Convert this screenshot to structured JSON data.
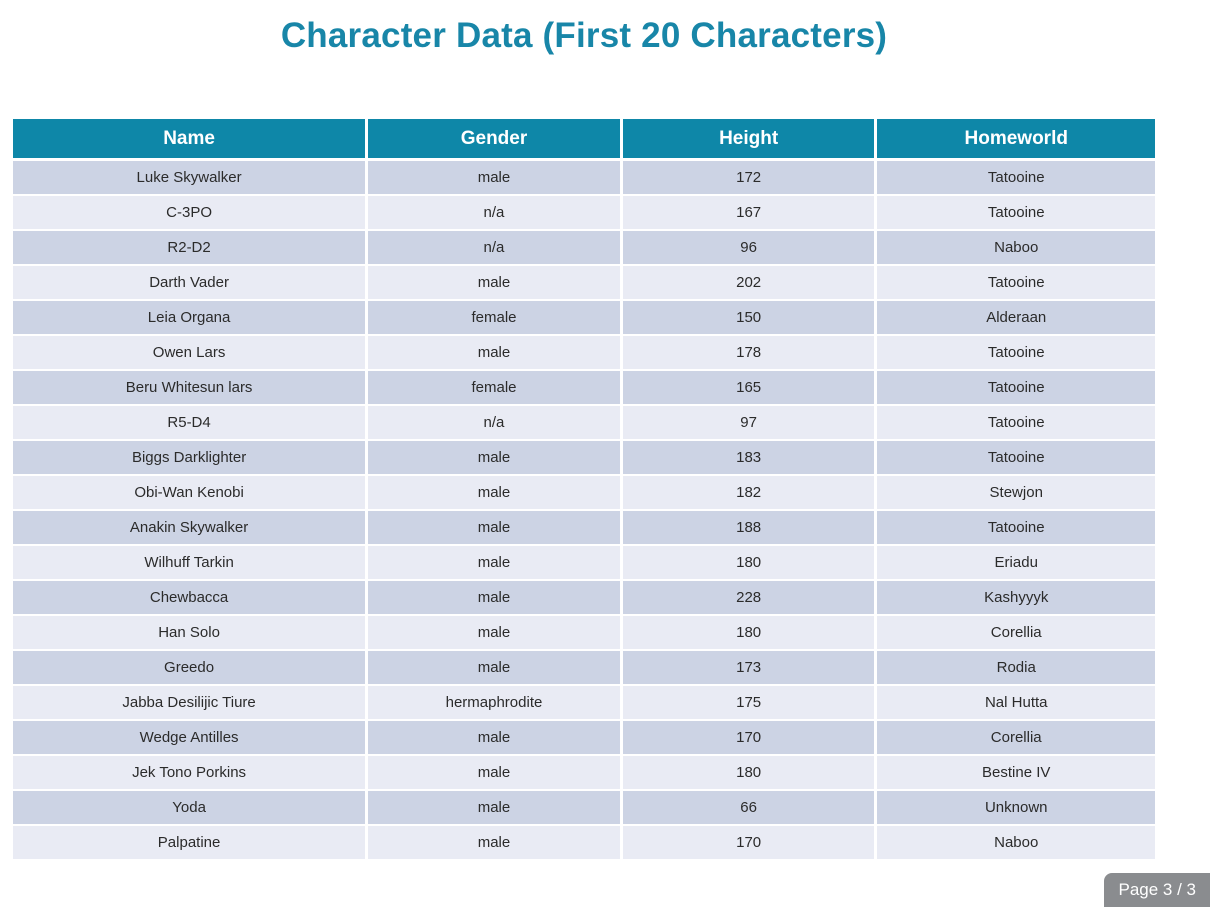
{
  "page": {
    "title": "Character Data (First 20 Characters)",
    "page_indicator": "Page 3 / 3"
  },
  "colors": {
    "title_text": "#1886a8",
    "header_bg": "#0e87a8",
    "header_text": "#ffffff",
    "row_odd_bg": "#ccd3e4",
    "row_even_bg": "#e9ebf4",
    "cell_text": "#2b2b2b",
    "badge_bg": "#8a8c8f",
    "badge_text": "#ffffff"
  },
  "chart_data": {
    "type": "table",
    "title": "Character Data (First 20 Characters)",
    "columns": [
      "Name",
      "Gender",
      "Height",
      "Homeworld"
    ],
    "rows": [
      [
        "Luke Skywalker",
        "male",
        "172",
        "Tatooine"
      ],
      [
        "C-3PO",
        "n/a",
        "167",
        "Tatooine"
      ],
      [
        "R2-D2",
        "n/a",
        "96",
        "Naboo"
      ],
      [
        "Darth Vader",
        "male",
        "202",
        "Tatooine"
      ],
      [
        "Leia Organa",
        "female",
        "150",
        "Alderaan"
      ],
      [
        "Owen Lars",
        "male",
        "178",
        "Tatooine"
      ],
      [
        "Beru Whitesun lars",
        "female",
        "165",
        "Tatooine"
      ],
      [
        "R5-D4",
        "n/a",
        "97",
        "Tatooine"
      ],
      [
        "Biggs Darklighter",
        "male",
        "183",
        "Tatooine"
      ],
      [
        "Obi-Wan Kenobi",
        "male",
        "182",
        "Stewjon"
      ],
      [
        "Anakin Skywalker",
        "male",
        "188",
        "Tatooine"
      ],
      [
        "Wilhuff Tarkin",
        "male",
        "180",
        "Eriadu"
      ],
      [
        "Chewbacca",
        "male",
        "228",
        "Kashyyyk"
      ],
      [
        "Han Solo",
        "male",
        "180",
        "Corellia"
      ],
      [
        "Greedo",
        "male",
        "173",
        "Rodia"
      ],
      [
        "Jabba Desilijic Tiure",
        "hermaphrodite",
        "175",
        "Nal Hutta"
      ],
      [
        "Wedge Antilles",
        "male",
        "170",
        "Corellia"
      ],
      [
        "Jek Tono Porkins",
        "male",
        "180",
        "Bestine IV"
      ],
      [
        "Yoda",
        "male",
        "66",
        "Unknown"
      ],
      [
        "Palpatine",
        "male",
        "170",
        "Naboo"
      ]
    ]
  }
}
